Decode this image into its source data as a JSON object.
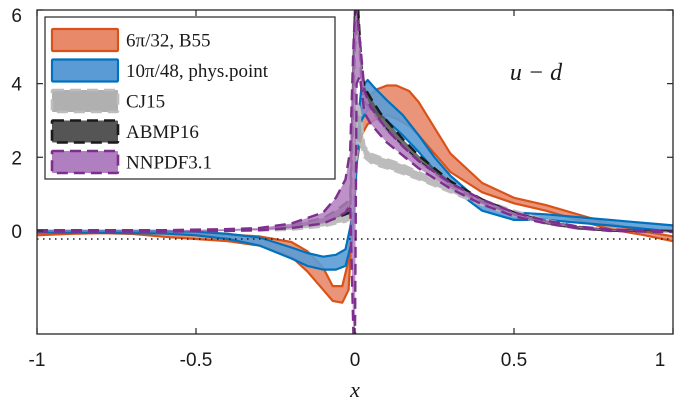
{
  "chart_data": {
    "type": "area",
    "title": "",
    "xlabel": "x",
    "ylabel": "",
    "xlim": [
      -1,
      1
    ],
    "ylim": [
      -2.8,
      6
    ],
    "xticks": [
      -1,
      -0.5,
      0,
      0.5,
      1
    ],
    "xtick_labels": [
      "-1",
      "-0.5",
      "0",
      "0.5",
      "1"
    ],
    "yticks": [
      0,
      2,
      4,
      6
    ],
    "ytick_labels": [
      "0",
      "2",
      "4",
      "6"
    ],
    "annotation": "u − d",
    "zero_line": "dotted",
    "legend_position": "top-left",
    "series": [
      {
        "name": "6π/32, B55",
        "color": "#d95319",
        "fill": "#e8896a",
        "style": "band",
        "x": [
          -1.0,
          -0.9,
          -0.8,
          -0.7,
          -0.6,
          -0.5,
          -0.4,
          -0.3,
          -0.2,
          -0.15,
          -0.1,
          -0.07,
          -0.04,
          -0.02,
          0.0,
          0.02,
          0.04,
          0.07,
          0.1,
          0.13,
          0.17,
          0.2,
          0.25,
          0.3,
          0.4,
          0.5,
          0.6,
          0.7,
          0.8,
          0.9,
          1.0
        ],
        "upper": [
          -0.05,
          -0.03,
          -0.02,
          -0.02,
          -0.05,
          -0.08,
          -0.1,
          -0.15,
          -0.3,
          -0.55,
          -1.0,
          -1.5,
          -1.5,
          -0.8,
          2.0,
          3.3,
          3.65,
          3.85,
          3.95,
          3.95,
          3.8,
          3.5,
          2.8,
          2.1,
          1.3,
          0.9,
          0.7,
          0.45,
          0.2,
          0.0,
          -0.15
        ],
        "lower": [
          -0.12,
          -0.08,
          -0.06,
          -0.08,
          -0.16,
          -0.22,
          -0.28,
          -0.4,
          -0.7,
          -1.1,
          -1.6,
          -1.9,
          -1.95,
          -1.6,
          1.6,
          2.6,
          2.9,
          3.05,
          3.15,
          3.05,
          2.85,
          2.6,
          2.1,
          1.6,
          1.05,
          0.75,
          0.55,
          0.3,
          0.05,
          -0.1,
          -0.28
        ]
      },
      {
        "name": "10π/48, phys.point",
        "color": "#0072bd",
        "fill": "#5b9bd5",
        "style": "band",
        "x": [
          -1.0,
          -0.8,
          -0.6,
          -0.5,
          -0.4,
          -0.3,
          -0.2,
          -0.15,
          -0.1,
          -0.06,
          -0.03,
          -0.01,
          0.0,
          0.01,
          0.02,
          0.04,
          0.06,
          0.1,
          0.15,
          0.2,
          0.25,
          0.3,
          0.4,
          0.5,
          0.6,
          0.8,
          1.0
        ],
        "upper": [
          0.0,
          0.0,
          0.0,
          -0.02,
          -0.08,
          -0.18,
          -0.45,
          -0.6,
          -0.7,
          -0.65,
          -0.5,
          0.3,
          1.5,
          3.0,
          3.9,
          4.1,
          3.9,
          3.55,
          3.15,
          2.6,
          2.0,
          1.5,
          0.75,
          0.5,
          0.45,
          0.3,
          0.15
        ],
        "lower": [
          -0.04,
          -0.05,
          -0.07,
          -0.12,
          -0.22,
          -0.4,
          -0.75,
          -0.95,
          -1.05,
          -1.05,
          -0.95,
          -0.3,
          1.0,
          2.4,
          3.0,
          3.3,
          3.3,
          3.0,
          2.6,
          2.15,
          1.65,
          1.2,
          0.55,
          0.3,
          0.3,
          0.15,
          -0.02
        ]
      },
      {
        "name": "CJ15",
        "color": "#bdbdbd",
        "fill": "#b0b0b0",
        "style": "band-dashed",
        "x": [
          -1.0,
          -0.6,
          -0.4,
          -0.3,
          -0.2,
          -0.1,
          -0.06,
          -0.03,
          -0.01,
          0.0,
          0.01,
          0.02,
          0.03,
          0.05,
          0.08,
          0.1,
          0.15,
          0.2,
          0.3,
          0.4,
          0.5,
          0.6,
          0.7,
          0.8,
          0.9,
          1.0
        ],
        "upper": [
          0.0,
          0.0,
          0.02,
          0.05,
          0.1,
          0.3,
          0.45,
          0.6,
          0.8,
          2.0,
          3.5,
          3.0,
          2.3,
          2.1,
          2.0,
          1.95,
          1.8,
          1.6,
          1.2,
          0.85,
          0.55,
          0.3,
          0.12,
          0.03,
          0.0,
          0.0
        ],
        "lower": [
          0.0,
          0.0,
          0.0,
          0.01,
          0.03,
          0.12,
          0.2,
          0.25,
          0.35,
          1.6,
          2.4,
          2.3,
          2.0,
          1.85,
          1.75,
          1.7,
          1.55,
          1.4,
          1.05,
          0.7,
          0.42,
          0.2,
          0.06,
          0.01,
          0.0,
          0.0
        ]
      },
      {
        "name": "ABMP16",
        "color": "#1a1a1a",
        "fill": "#555555",
        "style": "band-dashed",
        "x": [
          -1.0,
          -0.6,
          -0.4,
          -0.3,
          -0.2,
          -0.1,
          -0.06,
          -0.03,
          -0.015,
          0.0,
          0.01,
          0.02,
          0.03,
          0.05,
          0.08,
          0.1,
          0.15,
          0.2,
          0.3,
          0.4,
          0.5,
          0.6,
          0.7,
          0.8,
          0.9,
          1.0
        ],
        "upper": [
          0.0,
          0.0,
          0.03,
          0.06,
          0.15,
          0.35,
          0.55,
          0.75,
          0.85,
          6.0,
          6.0,
          4.5,
          3.9,
          3.6,
          3.2,
          3.0,
          2.5,
          2.05,
          1.35,
          0.85,
          0.5,
          0.25,
          0.1,
          0.02,
          0.0,
          0.0
        ],
        "lower": [
          0.0,
          0.0,
          0.01,
          0.03,
          0.08,
          0.22,
          0.35,
          0.45,
          0.5,
          5.0,
          5.8,
          4.0,
          3.5,
          3.3,
          2.95,
          2.75,
          2.3,
          1.9,
          1.25,
          0.78,
          0.45,
          0.22,
          0.08,
          0.01,
          0.0,
          0.0
        ]
      },
      {
        "name": "NNPDF3.1",
        "color": "#7e2f8e",
        "fill": "#b07fc0",
        "style": "band-dashed",
        "x": [
          -1.0,
          -0.6,
          -0.4,
          -0.3,
          -0.2,
          -0.1,
          -0.06,
          -0.03,
          -0.015,
          -0.005,
          0.0,
          0.005,
          0.015,
          0.03,
          0.05,
          0.08,
          0.1,
          0.15,
          0.2,
          0.3,
          0.4,
          0.5,
          0.6,
          0.7,
          0.8,
          0.9,
          1.0
        ],
        "upper": [
          0.02,
          0.02,
          0.05,
          0.08,
          0.2,
          0.5,
          0.9,
          1.4,
          2.2,
          5.0,
          6.0,
          6.0,
          5.2,
          3.8,
          3.35,
          3.0,
          2.75,
          2.3,
          1.9,
          1.3,
          0.85,
          0.5,
          0.28,
          0.12,
          0.04,
          0.01,
          0.0
        ],
        "lower": [
          -0.02,
          -0.02,
          0.0,
          0.02,
          0.08,
          0.2,
          0.35,
          0.5,
          0.7,
          -2.8,
          -2.8,
          4.0,
          4.2,
          3.2,
          2.9,
          2.6,
          2.4,
          2.05,
          1.7,
          1.15,
          0.72,
          0.4,
          0.2,
          0.07,
          0.0,
          -0.02,
          -0.03
        ]
      }
    ]
  }
}
